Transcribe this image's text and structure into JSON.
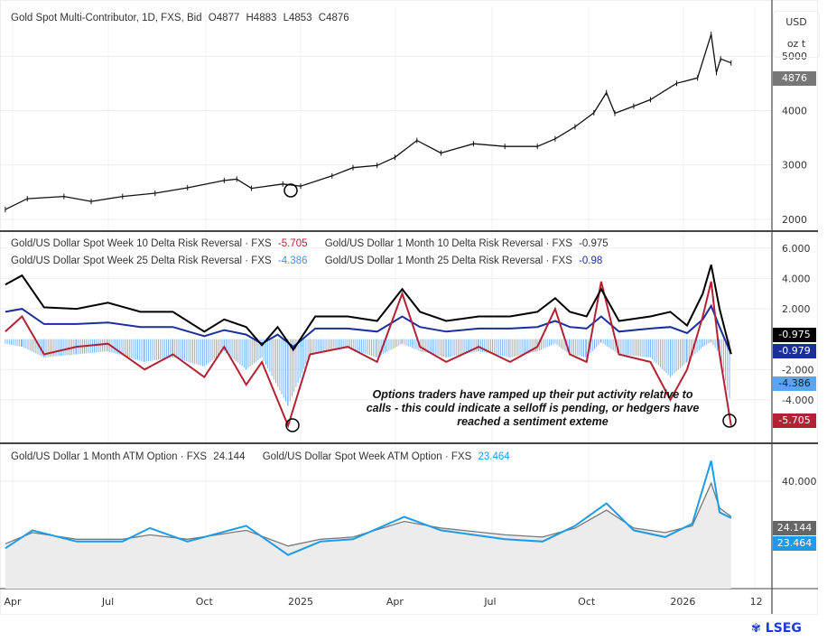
{
  "header": {
    "title": "Gold Spot Multi-Contributor, 1D, FXS, Bid",
    "open": "O4877",
    "high": "H4883",
    "low": "L4853",
    "close": "C4876"
  },
  "price_axis": {
    "currency": "USD",
    "unit": "oz t"
  },
  "annotation": "Options traders have ramped up their put activity relative to calls - this could indicate a selloff is pending, or hedgers have reached a sentiment exteme",
  "logo": "LSEG",
  "colors": {
    "price": "#111111",
    "week10": "#b22234",
    "month10": "#000000",
    "week25": "#7fb3f0",
    "month25": "#1a2f9a",
    "monthATM": "#777777",
    "weekATM": "#1e9be8"
  },
  "chart_data": [
    {
      "type": "line",
      "title": "Gold Spot Multi-Contributor, 1D, FXS, Bid",
      "ylim": [
        1800,
        5900
      ],
      "yticks": [
        "2000",
        "3000",
        "4000",
        "5000"
      ],
      "last_value_label": "4876",
      "series": [
        {
          "name": "Gold Spot Multi-Contributor",
          "points": [
            [
              "2024-03-25",
              2180
            ],
            [
              "2024-04-15",
              2380
            ],
            [
              "2024-05-20",
              2420
            ],
            [
              "2024-06-15",
              2330
            ],
            [
              "2024-07-15",
              2420
            ],
            [
              "2024-08-15",
              2480
            ],
            [
              "2024-09-15",
              2580
            ],
            [
              "2024-10-20",
              2715
            ],
            [
              "2024-11-01",
              2740
            ],
            [
              "2024-11-15",
              2570
            ],
            [
              "2024-12-15",
              2650
            ],
            [
              "2025-01-01",
              2610
            ],
            [
              "2025-01-31",
              2800
            ],
            [
              "2025-02-20",
              2950
            ],
            [
              "2025-03-15",
              2990
            ],
            [
              "2025-04-01",
              3140
            ],
            [
              "2025-04-22",
              3450
            ],
            [
              "2025-05-15",
              3220
            ],
            [
              "2025-06-15",
              3390
            ],
            [
              "2025-07-15",
              3340
            ],
            [
              "2025-08-15",
              3340
            ],
            [
              "2025-09-01",
              3480
            ],
            [
              "2025-09-20",
              3700
            ],
            [
              "2025-10-08",
              3960
            ],
            [
              "2025-10-20",
              4330
            ],
            [
              "2025-10-28",
              3950
            ],
            [
              "2025-11-15",
              4080
            ],
            [
              "2025-12-01",
              4200
            ],
            [
              "2025-12-26",
              4500
            ],
            [
              "2026-01-15",
              4600
            ],
            [
              "2026-01-28",
              5400
            ],
            [
              "2026-02-02",
              4700
            ],
            [
              "2026-02-06",
              4950
            ],
            [
              "2026-02-16",
              4876
            ]
          ]
        }
      ]
    },
    {
      "type": "line",
      "ylim": [
        -6.8,
        7.0
      ],
      "yticks": [
        "6.000",
        "4.000",
        "2.000",
        "-2.000",
        "-4.000"
      ],
      "series": [
        {
          "name": "Gold/US Dollar Spot Week 10 Delta Risk Reversal · FXS",
          "last": "-5.705",
          "points": [
            [
              "2024-03-25",
              0.5
            ],
            [
              "2024-04-10",
              1.5
            ],
            [
              "2024-05-01",
              -1.0
            ],
            [
              "2024-06-01",
              -0.5
            ],
            [
              "2024-07-01",
              -0.3
            ],
            [
              "2024-08-05",
              -2.0
            ],
            [
              "2024-09-01",
              -1.0
            ],
            [
              "2024-10-01",
              -2.5
            ],
            [
              "2024-10-20",
              -0.5
            ],
            [
              "2024-11-10",
              -3.0
            ],
            [
              "2024-11-25",
              -1.5
            ],
            [
              "2024-12-20",
              -5.7
            ],
            [
              "2025-01-10",
              -1.0
            ],
            [
              "2025-02-15",
              -0.5
            ],
            [
              "2025-03-15",
              -1.5
            ],
            [
              "2025-04-08",
              3.0
            ],
            [
              "2025-04-25",
              -0.5
            ],
            [
              "2025-05-20",
              -1.5
            ],
            [
              "2025-06-20",
              -0.5
            ],
            [
              "2025-07-20",
              -1.5
            ],
            [
              "2025-08-15",
              -0.5
            ],
            [
              "2025-09-01",
              2.0
            ],
            [
              "2025-09-15",
              -1.0
            ],
            [
              "2025-10-01",
              -1.5
            ],
            [
              "2025-10-15",
              3.8
            ],
            [
              "2025-11-01",
              -1.0
            ],
            [
              "2025-12-01",
              -1.5
            ],
            [
              "2025-12-20",
              -4.0
            ],
            [
              "2026-01-05",
              -2.0
            ],
            [
              "2026-01-20",
              1.5
            ],
            [
              "2026-01-28",
              3.8
            ],
            [
              "2026-02-05",
              -1.0
            ],
            [
              "2026-02-16",
              -5.705
            ]
          ]
        },
        {
          "name": "Gold/US Dollar Spot Week 25 Delta Risk Reversal · FXS",
          "last": "-4.386",
          "points": [
            [
              "2024-03-25",
              -0.3
            ],
            [
              "2024-04-10",
              -0.5
            ],
            [
              "2024-05-01",
              -1.2
            ],
            [
              "2024-06-01",
              -1.0
            ],
            [
              "2024-07-01",
              -0.8
            ],
            [
              "2024-08-05",
              -1.5
            ],
            [
              "2024-09-01",
              -1.2
            ],
            [
              "2024-10-01",
              -1.8
            ],
            [
              "2024-10-20",
              -0.8
            ],
            [
              "2024-11-10",
              -2.0
            ],
            [
              "2024-11-25",
              -1.2
            ],
            [
              "2024-12-20",
              -4.4
            ],
            [
              "2025-01-10",
              -1.0
            ],
            [
              "2025-02-15",
              -0.6
            ],
            [
              "2025-03-15",
              -1.2
            ],
            [
              "2025-04-08",
              -0.3
            ],
            [
              "2025-04-25",
              -0.8
            ],
            [
              "2025-05-20",
              -1.2
            ],
            [
              "2025-06-20",
              -0.8
            ],
            [
              "2025-07-20",
              -1.2
            ],
            [
              "2025-08-15",
              -0.8
            ],
            [
              "2025-09-01",
              -0.3
            ],
            [
              "2025-09-15",
              -1.0
            ],
            [
              "2025-10-01",
              -1.2
            ],
            [
              "2025-10-15",
              -0.2
            ],
            [
              "2025-11-01",
              -1.0
            ],
            [
              "2025-12-01",
              -1.2
            ],
            [
              "2025-12-20",
              -2.5
            ],
            [
              "2026-01-05",
              -1.5
            ],
            [
              "2026-01-20",
              -0.5
            ],
            [
              "2026-01-28",
              -0.2
            ],
            [
              "2026-02-05",
              -1.0
            ],
            [
              "2026-02-16",
              -4.386
            ]
          ]
        },
        {
          "name": "Gold/US Dollar 1 Month 10 Delta Risk Reversal · FXS",
          "last": "-0.975",
          "points": [
            [
              "2024-03-25",
              3.6
            ],
            [
              "2024-04-10",
              4.2
            ],
            [
              "2024-05-01",
              2.1
            ],
            [
              "2024-06-01",
              2.0
            ],
            [
              "2024-07-01",
              2.4
            ],
            [
              "2024-08-01",
              1.8
            ],
            [
              "2024-09-01",
              1.8
            ],
            [
              "2024-10-01",
              0.5
            ],
            [
              "2024-10-20",
              1.3
            ],
            [
              "2024-11-10",
              0.8
            ],
            [
              "2024-11-25",
              -0.4
            ],
            [
              "2024-12-10",
              0.8
            ],
            [
              "2024-12-25",
              -0.7
            ],
            [
              "2025-01-15",
              1.5
            ],
            [
              "2025-02-15",
              1.5
            ],
            [
              "2025-03-15",
              1.2
            ],
            [
              "2025-04-08",
              3.3
            ],
            [
              "2025-04-25",
              1.8
            ],
            [
              "2025-05-20",
              1.2
            ],
            [
              "2025-06-20",
              1.5
            ],
            [
              "2025-07-20",
              1.5
            ],
            [
              "2025-08-15",
              1.8
            ],
            [
              "2025-09-01",
              2.7
            ],
            [
              "2025-09-15",
              1.8
            ],
            [
              "2025-10-01",
              1.5
            ],
            [
              "2025-10-15",
              3.3
            ],
            [
              "2025-11-01",
              1.2
            ],
            [
              "2025-12-01",
              1.5
            ],
            [
              "2025-12-20",
              1.8
            ],
            [
              "2026-01-05",
              0.9
            ],
            [
              "2026-01-20",
              3.0
            ],
            [
              "2026-01-28",
              4.9
            ],
            [
              "2026-02-05",
              2.0
            ],
            [
              "2026-02-16",
              -0.975
            ]
          ]
        },
        {
          "name": "Gold/US Dollar 1 Month 25 Delta Risk Reversal · FXS",
          "last": "-0.98",
          "axis_label": "-0.979",
          "points": [
            [
              "2024-03-25",
              1.8
            ],
            [
              "2024-04-10",
              2.0
            ],
            [
              "2024-05-01",
              1.0
            ],
            [
              "2024-06-01",
              1.0
            ],
            [
              "2024-07-01",
              1.1
            ],
            [
              "2024-08-01",
              0.8
            ],
            [
              "2024-09-01",
              0.8
            ],
            [
              "2024-10-01",
              0.2
            ],
            [
              "2024-10-20",
              0.6
            ],
            [
              "2024-11-10",
              0.3
            ],
            [
              "2024-11-25",
              -0.3
            ],
            [
              "2024-12-10",
              0.3
            ],
            [
              "2024-12-25",
              -0.5
            ],
            [
              "2025-01-15",
              0.7
            ],
            [
              "2025-02-15",
              0.7
            ],
            [
              "2025-03-15",
              0.5
            ],
            [
              "2025-04-08",
              1.5
            ],
            [
              "2025-04-25",
              0.8
            ],
            [
              "2025-05-20",
              0.5
            ],
            [
              "2025-06-20",
              0.7
            ],
            [
              "2025-07-20",
              0.7
            ],
            [
              "2025-08-15",
              0.8
            ],
            [
              "2025-09-01",
              1.2
            ],
            [
              "2025-09-15",
              0.8
            ],
            [
              "2025-10-01",
              0.7
            ],
            [
              "2025-10-15",
              1.5
            ],
            [
              "2025-11-01",
              0.5
            ],
            [
              "2025-12-01",
              0.7
            ],
            [
              "2025-12-20",
              0.8
            ],
            [
              "2026-01-05",
              0.4
            ],
            [
              "2026-01-20",
              1.3
            ],
            [
              "2026-01-28",
              2.2
            ],
            [
              "2026-02-05",
              0.8
            ],
            [
              "2026-02-16",
              -0.979
            ]
          ]
        }
      ]
    },
    {
      "type": "line",
      "ylim": [
        -8,
        56
      ],
      "yticks": [
        "40.000"
      ],
      "series": [
        {
          "name": "Gold/US Dollar 1 Month ATM Option · FXS",
          "last": "24.144",
          "points": [
            [
              "2024-03-25",
              12
            ],
            [
              "2024-04-20",
              17
            ],
            [
              "2024-06-01",
              14
            ],
            [
              "2024-07-15",
              14
            ],
            [
              "2024-08-10",
              16
            ],
            [
              "2024-09-15",
              14
            ],
            [
              "2024-11-10",
              18
            ],
            [
              "2024-12-20",
              11
            ],
            [
              "2025-01-20",
              14
            ],
            [
              "2025-02-20",
              15
            ],
            [
              "2025-04-10",
              22
            ],
            [
              "2025-05-15",
              19
            ],
            [
              "2025-07-15",
              16
            ],
            [
              "2025-08-20",
              15
            ],
            [
              "2025-09-20",
              19
            ],
            [
              "2025-10-20",
              27
            ],
            [
              "2025-11-15",
              19
            ],
            [
              "2025-12-15",
              17
            ],
            [
              "2026-01-10",
              20
            ],
            [
              "2026-01-28",
              39
            ],
            [
              "2026-02-05",
              28
            ],
            [
              "2026-02-16",
              24.144
            ]
          ]
        },
        {
          "name": "Gold/US Dollar Spot Week ATM Option · FXS",
          "last": "23.464",
          "points": [
            [
              "2024-03-25",
              10
            ],
            [
              "2024-04-20",
              18
            ],
            [
              "2024-06-01",
              13
            ],
            [
              "2024-07-15",
              13
            ],
            [
              "2024-08-10",
              19
            ],
            [
              "2024-09-15",
              13
            ],
            [
              "2024-11-10",
              20
            ],
            [
              "2024-12-20",
              7
            ],
            [
              "2025-01-20",
              13
            ],
            [
              "2025-02-20",
              14
            ],
            [
              "2025-04-10",
              24
            ],
            [
              "2025-05-15",
              18
            ],
            [
              "2025-07-15",
              14
            ],
            [
              "2025-08-20",
              13
            ],
            [
              "2025-09-20",
              20
            ],
            [
              "2025-10-20",
              30
            ],
            [
              "2025-11-15",
              18
            ],
            [
              "2025-12-15",
              15
            ],
            [
              "2026-01-10",
              21
            ],
            [
              "2026-01-28",
              49
            ],
            [
              "2026-02-05",
              26
            ],
            [
              "2026-02-16",
              23.464
            ]
          ]
        }
      ]
    }
  ],
  "x_axis": {
    "ticks": [
      [
        "2024-04-01",
        "Apr"
      ],
      [
        "2024-07-01",
        "Jul"
      ],
      [
        "2024-10-01",
        "Oct"
      ],
      [
        "2025-01-01",
        "2025"
      ],
      [
        "2025-04-01",
        "Apr"
      ],
      [
        "2025-07-01",
        "Jul"
      ],
      [
        "2025-10-01",
        "Oct"
      ],
      [
        "2026-01-01",
        "2026"
      ],
      [
        "2026-03-12",
        "12"
      ]
    ]
  }
}
